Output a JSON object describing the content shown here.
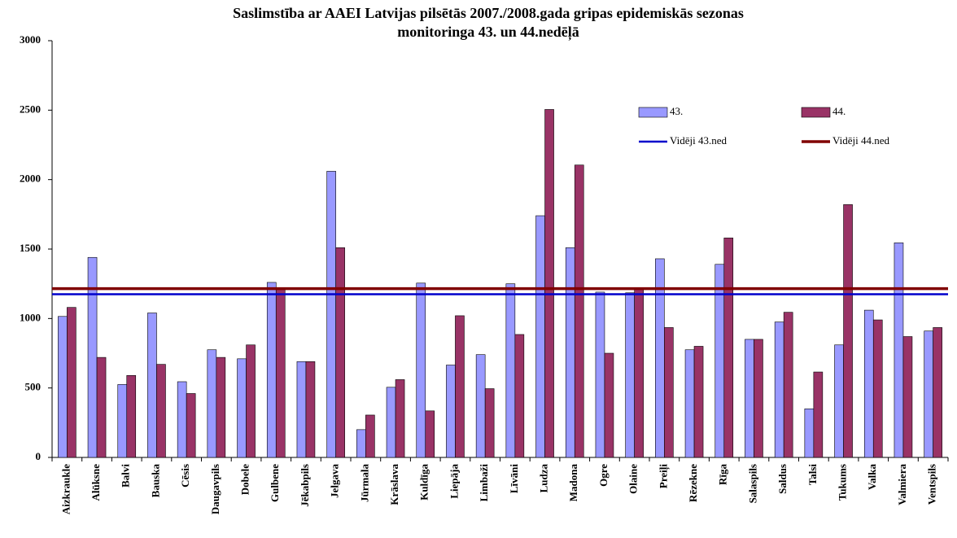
{
  "chart_data": {
    "type": "bar",
    "title": [
      "Saslimstība ar AAEI Latvijas pilsētās 2007./2008.gada gripas epidemiskās sezonas",
      "monitoringa 43. un 44.nedēļā"
    ],
    "categories": [
      "Aizkraukle",
      "Alūksne",
      "Balvi",
      "Bauska",
      "Cēsis",
      "Daugavpils",
      "Dobele",
      "Gulbene",
      "Jēkabpils",
      "Jelgava",
      "Jūrmala",
      "Krāslava",
      "Kuldīga",
      "Liepāja",
      "Limbaži",
      "Līvāni",
      "Ludza",
      "Madona",
      "Ogre",
      "Olaine",
      "Preiļi",
      "Rēzekne",
      "Rīga",
      "Salaspils",
      "Saldus",
      "Talsi",
      "Tukums",
      "Valka",
      "Valmiera",
      "Ventspils"
    ],
    "series": [
      {
        "name": "43.",
        "color": "#9999ff",
        "values": [
          1015,
          1440,
          525,
          1040,
          545,
          775,
          710,
          1260,
          690,
          2060,
          200,
          505,
          1255,
          665,
          740,
          1250,
          1740,
          1510,
          1190,
          1185,
          1430,
          775,
          1390,
          850,
          975,
          350,
          810,
          1060,
          1545,
          910
        ]
      },
      {
        "name": "44.",
        "color": "#993366",
        "values": [
          1080,
          720,
          590,
          670,
          460,
          720,
          810,
          1215,
          690,
          1510,
          305,
          560,
          335,
          1020,
          495,
          885,
          2505,
          2105,
          750,
          1210,
          935,
          800,
          1580,
          850,
          1045,
          615,
          1820,
          990,
          870,
          935
        ]
      }
    ],
    "reference_lines": [
      {
        "name": "Vidēji 43.ned",
        "color": "#0000cc",
        "value": 1175
      },
      {
        "name": "Vidēji 44.ned",
        "color": "#800000",
        "value": 1215
      }
    ],
    "ylim": [
      0,
      3000
    ],
    "yticks": [
      0,
      500,
      1000,
      1500,
      2000,
      2500,
      3000
    ],
    "grid": false
  }
}
